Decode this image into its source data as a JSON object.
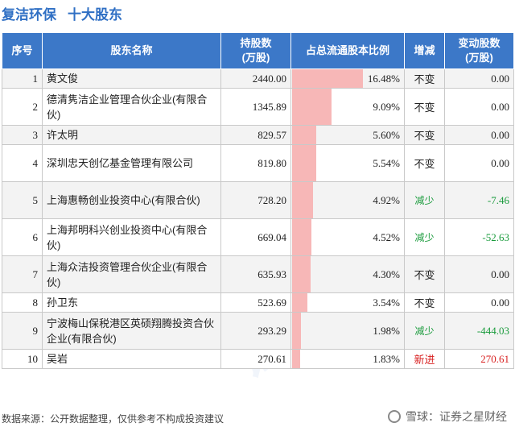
{
  "header": {
    "company": "复洁环保",
    "section": "十大股东"
  },
  "table": {
    "columns": [
      "序号",
      "股东名称",
      "持股数\n(万股)",
      "占总流通股本比例",
      "增减",
      "变动股数\n(万股)"
    ],
    "rows": [
      {
        "idx": "1",
        "name": "黄文俊",
        "shares": "2440.00",
        "ratio": 16.48,
        "ratio_text": "16.48%",
        "change": "不变",
        "change_type": "same",
        "delta": "0.00"
      },
      {
        "idx": "2",
        "name": "德清隽洁企业管理合伙企业(有限合伙)",
        "shares": "1345.89",
        "ratio": 9.09,
        "ratio_text": "9.09%",
        "change": "不变",
        "change_type": "same",
        "delta": "0.00"
      },
      {
        "idx": "3",
        "name": "许太明",
        "shares": "829.57",
        "ratio": 5.6,
        "ratio_text": "5.60%",
        "change": "不变",
        "change_type": "same",
        "delta": "0.00"
      },
      {
        "idx": "4",
        "name": "深圳忠天创亿基金管理有限公司",
        "shares": "819.80",
        "ratio": 5.54,
        "ratio_text": "5.54%",
        "change": "不变",
        "change_type": "same",
        "delta": "0.00"
      },
      {
        "idx": "5",
        "name": "上海惠畅创业投资中心(有限合伙)",
        "shares": "728.20",
        "ratio": 4.92,
        "ratio_text": "4.92%",
        "change": "减少",
        "change_type": "down",
        "delta": "-7.46"
      },
      {
        "idx": "6",
        "name": "上海邦明科兴创业投资中心(有限合伙)",
        "shares": "669.04",
        "ratio": 4.52,
        "ratio_text": "4.52%",
        "change": "减少",
        "change_type": "down",
        "delta": "-52.63"
      },
      {
        "idx": "7",
        "name": "上海众洁投资管理合伙企业(有限合伙)",
        "shares": "635.93",
        "ratio": 4.3,
        "ratio_text": "4.30%",
        "change": "不变",
        "change_type": "same",
        "delta": "0.00"
      },
      {
        "idx": "8",
        "name": "孙卫东",
        "shares": "523.69",
        "ratio": 3.54,
        "ratio_text": "3.54%",
        "change": "不变",
        "change_type": "same",
        "delta": "0.00"
      },
      {
        "idx": "9",
        "name": "宁波梅山保税港区英硕翔腾投资合伙企业(有限合伙)",
        "shares": "293.29",
        "ratio": 1.98,
        "ratio_text": "1.98%",
        "change": "减少",
        "change_type": "down",
        "delta": "-444.03"
      },
      {
        "idx": "10",
        "name": "吴岩",
        "shares": "270.61",
        "ratio": 1.83,
        "ratio_text": "1.83%",
        "change": "新进",
        "change_type": "new",
        "delta": "270.61"
      }
    ]
  },
  "chart_data": {
    "type": "table",
    "columns": [
      "序号",
      "股东名称",
      "持股数(万股)",
      "占总流通股本比例",
      "增减",
      "变动股数(万股)"
    ],
    "rows": [
      [
        "1",
        "黄文俊",
        2440.0,
        16.48,
        "不变",
        0.0
      ],
      [
        "2",
        "德清隽洁企业管理合伙企业(有限合伙)",
        1345.89,
        9.09,
        "不变",
        0.0
      ],
      [
        "3",
        "许太明",
        829.57,
        5.6,
        "不变",
        0.0
      ],
      [
        "4",
        "深圳忠天创亿基金管理有限公司",
        819.8,
        5.54,
        "不变",
        0.0
      ],
      [
        "5",
        "上海惠畅创业投资中心(有限合伙)",
        728.2,
        4.92,
        "减少",
        -7.46
      ],
      [
        "6",
        "上海邦明科兴创业投资中心(有限合伙)",
        669.04,
        4.52,
        "减少",
        -52.63
      ],
      [
        "7",
        "上海众洁投资管理合伙企业(有限合伙)",
        635.93,
        4.3,
        "不变",
        0.0
      ],
      [
        "8",
        "孙卫东",
        523.69,
        3.54,
        "不变",
        0.0
      ],
      [
        "9",
        "宁波梅山保税港区英硕翔腾投资合伙企业(有限合伙)",
        293.29,
        1.98,
        "减少",
        -444.03
      ],
      [
        "10",
        "吴岩",
        270.61,
        1.83,
        "新进",
        270.61
      ]
    ]
  },
  "footer": {
    "source": "数据来源：公开数据整理，仅供参考不构成投资建议",
    "brand": "雪球：证券之星财经"
  },
  "colors": {
    "header_bg": "#3c78c8",
    "bar": "#f7b7b7",
    "down": "#1a9b3c",
    "up": "#d81e1e"
  }
}
